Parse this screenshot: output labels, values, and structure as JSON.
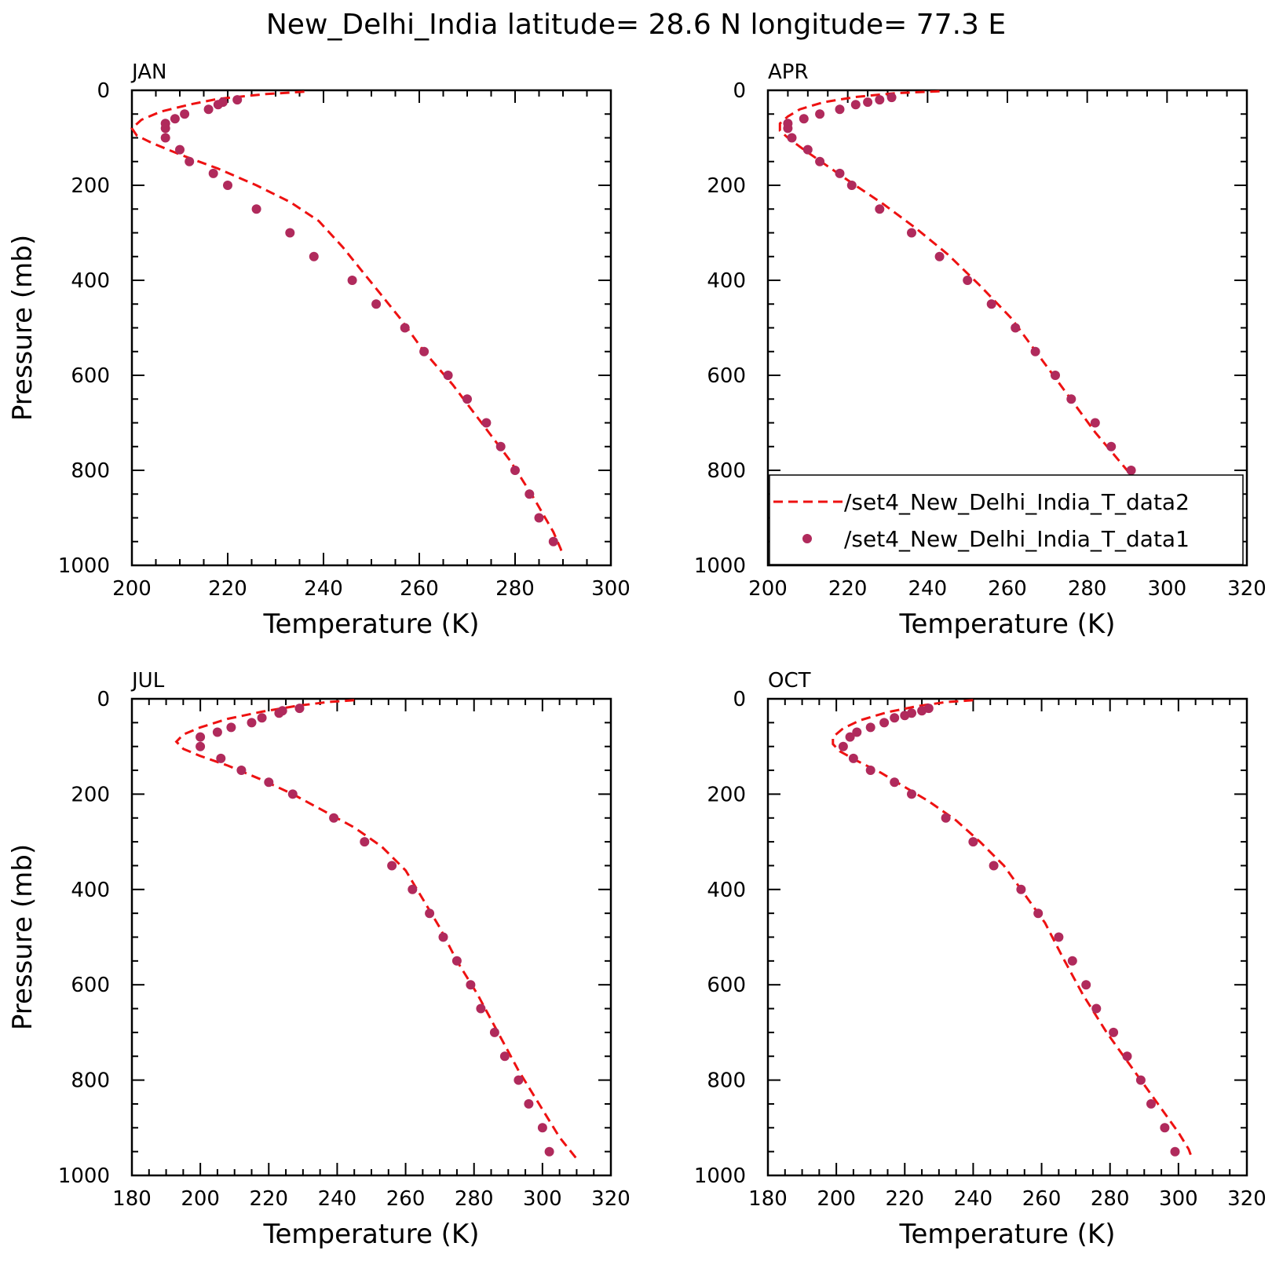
{
  "title": "New_Delhi_India   latitude= 28.6 N longitude= 77.3 E",
  "colors": {
    "model_line": "#ee1111",
    "obs_points": "#b02a5c",
    "axes": "#000000"
  },
  "legend": {
    "entries": [
      {
        "label": "/set4_New_Delhi_India_T_data2",
        "style": "dashed-line"
      },
      {
        "label": "/set4_New_Delhi_India_T_data1",
        "style": "dot"
      }
    ]
  },
  "chart_data": [
    {
      "type": "line",
      "panel": "JAN",
      "xlabel": "Temperature (K)",
      "ylabel": "Pressure (mb)",
      "xlim": [
        200,
        300
      ],
      "ylim": [
        1000,
        0
      ],
      "xticks": [
        200,
        220,
        240,
        260,
        280,
        300
      ],
      "yticks": [
        0,
        200,
        400,
        600,
        800,
        1000
      ],
      "series": [
        {
          "name": "/set4_New_Delhi_India_T_data2",
          "style": "dashed-line",
          "points": [
            [
              236,
              3
            ],
            [
              228,
              8
            ],
            [
              218,
              18
            ],
            [
              212,
              30
            ],
            [
              206,
              45
            ],
            [
              202,
              62
            ],
            [
              200,
              80
            ],
            [
              201,
              95
            ],
            [
              204,
              110
            ],
            [
              210,
              135
            ],
            [
              218,
              165
            ],
            [
              226,
              200
            ],
            [
              233,
              235
            ],
            [
              239,
              275
            ],
            [
              244,
              330
            ],
            [
              248,
              380
            ],
            [
              252,
              430
            ],
            [
              256,
              480
            ],
            [
              261,
              550
            ],
            [
              267,
              620
            ],
            [
              273,
              700
            ],
            [
              279,
              780
            ],
            [
              284,
              860
            ],
            [
              288,
              930
            ],
            [
              289.5,
              965
            ],
            [
              290,
              980
            ]
          ]
        },
        {
          "name": "/set4_New_Delhi_India_T_data1",
          "style": "dot",
          "points": [
            [
              222,
              20
            ],
            [
              219,
              25
            ],
            [
              218,
              30
            ],
            [
              216,
              40
            ],
            [
              211,
              50
            ],
            [
              209,
              60
            ],
            [
              207,
              70
            ],
            [
              207,
              80
            ],
            [
              207,
              100
            ],
            [
              210,
              125
            ],
            [
              212,
              150
            ],
            [
              217,
              175
            ],
            [
              220,
              200
            ],
            [
              226,
              250
            ],
            [
              233,
              300
            ],
            [
              238,
              350
            ],
            [
              246,
              400
            ],
            [
              251,
              450
            ],
            [
              257,
              500
            ],
            [
              261,
              550
            ],
            [
              266,
              600
            ],
            [
              270,
              650
            ],
            [
              274,
              700
            ],
            [
              277,
              750
            ],
            [
              280,
              800
            ],
            [
              283,
              850
            ],
            [
              285,
              900
            ],
            [
              288,
              950
            ]
          ]
        }
      ]
    },
    {
      "type": "line",
      "panel": "APR",
      "xlabel": "Temperature (K)",
      "ylabel": "",
      "xlim": [
        200,
        320
      ],
      "ylim": [
        1000,
        0
      ],
      "xticks": [
        200,
        220,
        240,
        260,
        280,
        300,
        320
      ],
      "yticks": [
        0,
        200,
        400,
        600,
        800,
        1000
      ],
      "series": [
        {
          "name": "/set4_New_Delhi_India_T_data2",
          "style": "dashed-line",
          "points": [
            [
              243,
              2
            ],
            [
              232,
              6
            ],
            [
              222,
              14
            ],
            [
              214,
              25
            ],
            [
              208,
              40
            ],
            [
              205,
              55
            ],
            [
              203,
              70
            ],
            [
              203,
              85
            ],
            [
              205,
              100
            ],
            [
              209,
              125
            ],
            [
              215,
              160
            ],
            [
              221,
              195
            ],
            [
              229,
              240
            ],
            [
              237,
              290
            ],
            [
              245,
              345
            ],
            [
              253,
              410
            ],
            [
              261,
              480
            ],
            [
              268,
              560
            ],
            [
              275,
              640
            ],
            [
              282,
              720
            ],
            [
              290,
              800
            ],
            [
              296,
              860
            ],
            [
              301,
              910
            ],
            [
              304,
              940
            ],
            [
              306,
              960
            ]
          ]
        },
        {
          "name": "/set4_New_Delhi_India_T_data1",
          "style": "dot",
          "points": [
            [
              231,
              15
            ],
            [
              228,
              20
            ],
            [
              225,
              25
            ],
            [
              222,
              30
            ],
            [
              218,
              40
            ],
            [
              213,
              50
            ],
            [
              209,
              60
            ],
            [
              205,
              70
            ],
            [
              205,
              80
            ],
            [
              206,
              100
            ],
            [
              210,
              125
            ],
            [
              213,
              150
            ],
            [
              218,
              175
            ],
            [
              221,
              200
            ],
            [
              228,
              250
            ],
            [
              236,
              300
            ],
            [
              243,
              350
            ],
            [
              250,
              400
            ],
            [
              256,
              450
            ],
            [
              262,
              500
            ],
            [
              267,
              550
            ],
            [
              272,
              600
            ],
            [
              276,
              650
            ],
            [
              282,
              700
            ],
            [
              286,
              750
            ],
            [
              291,
              800
            ],
            [
              296,
              850
            ],
            [
              300,
              900
            ],
            [
              302,
              950
            ]
          ]
        }
      ]
    },
    {
      "type": "line",
      "panel": "JUL",
      "xlabel": "Temperature (K)",
      "ylabel": "Pressure (mb)",
      "xlim": [
        180,
        320
      ],
      "ylim": [
        1000,
        0
      ],
      "xticks": [
        180,
        200,
        220,
        240,
        260,
        280,
        300,
        320
      ],
      "yticks": [
        0,
        200,
        400,
        600,
        800,
        1000
      ],
      "series": [
        {
          "name": "/set4_New_Delhi_India_T_data2",
          "style": "dashed-line",
          "points": [
            [
              245,
              3
            ],
            [
              237,
              7
            ],
            [
              228,
              15
            ],
            [
              218,
              27
            ],
            [
              208,
              42
            ],
            [
              200,
              60
            ],
            [
              195,
              75
            ],
            [
              193,
              90
            ],
            [
              195,
              105
            ],
            [
              200,
              120
            ],
            [
              208,
              140
            ],
            [
              218,
              170
            ],
            [
              227,
              200
            ],
            [
              236,
              235
            ],
            [
              245,
              270
            ],
            [
              253,
              310
            ],
            [
              260,
              360
            ],
            [
              265,
              420
            ],
            [
              270,
              480
            ],
            [
              275,
              550
            ],
            [
              281,
              620
            ],
            [
              287,
              700
            ],
            [
              293,
              780
            ],
            [
              299,
              850
            ],
            [
              305,
              920
            ],
            [
              310,
              965
            ]
          ]
        },
        {
          "name": "/set4_New_Delhi_India_T_data1",
          "style": "dot",
          "points": [
            [
              229,
              20
            ],
            [
              224,
              25
            ],
            [
              223,
              30
            ],
            [
              218,
              40
            ],
            [
              215,
              50
            ],
            [
              209,
              60
            ],
            [
              205,
              70
            ],
            [
              200,
              80
            ],
            [
              200,
              100
            ],
            [
              206,
              125
            ],
            [
              212,
              150
            ],
            [
              220,
              175
            ],
            [
              227,
              200
            ],
            [
              239,
              250
            ],
            [
              248,
              300
            ],
            [
              256,
              350
            ],
            [
              262,
              400
            ],
            [
              267,
              450
            ],
            [
              271,
              500
            ],
            [
              275,
              550
            ],
            [
              279,
              600
            ],
            [
              282,
              650
            ],
            [
              286,
              700
            ],
            [
              289,
              750
            ],
            [
              293,
              800
            ],
            [
              296,
              850
            ],
            [
              300,
              900
            ],
            [
              302,
              950
            ]
          ]
        }
      ]
    },
    {
      "type": "line",
      "panel": "OCT",
      "xlabel": "Temperature (K)",
      "ylabel": "",
      "xlim": [
        180,
        320
      ],
      "ylim": [
        1000,
        0
      ],
      "xticks": [
        180,
        200,
        220,
        240,
        260,
        280,
        300,
        320
      ],
      "yticks": [
        0,
        200,
        400,
        600,
        800,
        1000
      ],
      "series": [
        {
          "name": "/set4_New_Delhi_India_T_data2",
          "style": "dashed-line",
          "points": [
            [
              240,
              3
            ],
            [
              232,
              7
            ],
            [
              224,
              15
            ],
            [
              215,
              28
            ],
            [
              207,
              45
            ],
            [
              202,
              62
            ],
            [
              199,
              80
            ],
            [
              199,
              95
            ],
            [
              201,
              110
            ],
            [
              206,
              130
            ],
            [
              213,
              155
            ],
            [
              220,
              185
            ],
            [
              227,
              215
            ],
            [
              235,
              255
            ],
            [
              242,
              300
            ],
            [
              249,
              350
            ],
            [
              255,
              410
            ],
            [
              261,
              470
            ],
            [
              266,
              540
            ],
            [
              272,
              620
            ],
            [
              279,
              700
            ],
            [
              287,
              780
            ],
            [
              294,
              850
            ],
            [
              300,
              910
            ],
            [
              303,
              945
            ],
            [
              304,
              965
            ]
          ]
        },
        {
          "name": "/set4_New_Delhi_India_T_data1",
          "style": "dot",
          "points": [
            [
              227,
              20
            ],
            [
              225,
              25
            ],
            [
              222,
              30
            ],
            [
              220,
              35
            ],
            [
              217,
              40
            ],
            [
              214,
              50
            ],
            [
              210,
              60
            ],
            [
              206,
              70
            ],
            [
              204,
              80
            ],
            [
              202,
              100
            ],
            [
              205,
              125
            ],
            [
              210,
              150
            ],
            [
              217,
              175
            ],
            [
              222,
              200
            ],
            [
              232,
              250
            ],
            [
              240,
              300
            ],
            [
              246,
              350
            ],
            [
              254,
              400
            ],
            [
              259,
              450
            ],
            [
              265,
              500
            ],
            [
              269,
              550
            ],
            [
              273,
              600
            ],
            [
              276,
              650
            ],
            [
              281,
              700
            ],
            [
              285,
              750
            ],
            [
              289,
              800
            ],
            [
              292,
              850
            ],
            [
              296,
              900
            ],
            [
              299,
              950
            ]
          ]
        }
      ]
    }
  ]
}
